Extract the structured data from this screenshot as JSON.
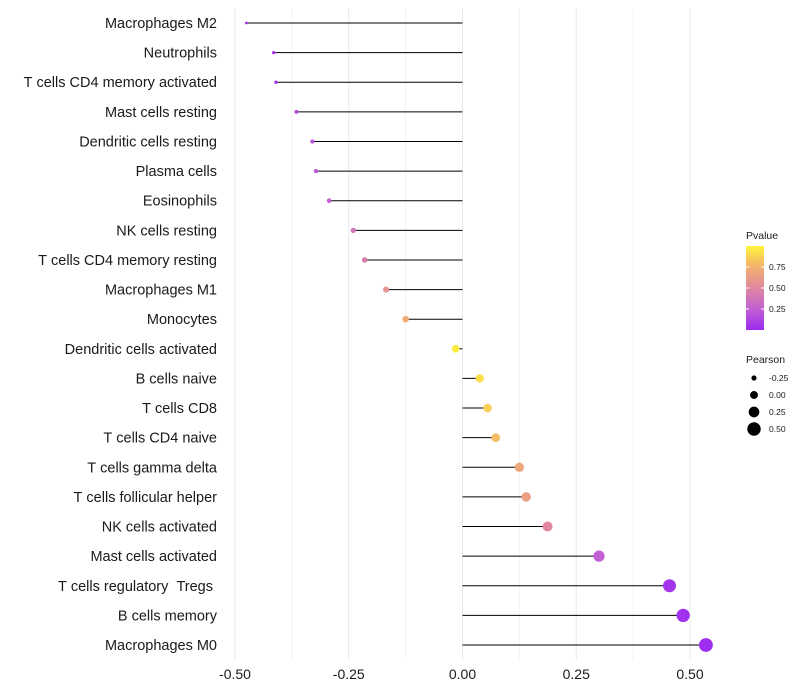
{
  "chart_data": {
    "type": "lollipop",
    "title": "",
    "xlabel": "",
    "ylabel": "",
    "xlim": [
      -0.5,
      0.55
    ],
    "x_ticks": [
      -0.5,
      -0.25,
      0.0,
      0.25,
      0.5
    ],
    "x_tick_labels": [
      "-0.50",
      "-0.25",
      "0.00",
      "0.25",
      "0.50"
    ],
    "grid": "vertical",
    "baseline": 0,
    "points": [
      {
        "category": "Macrophages M2",
        "pearson": -0.475,
        "pvalue": 0.01
      },
      {
        "category": "Neutrophils",
        "pearson": -0.415,
        "pvalue": 0.05
      },
      {
        "category": "T cells CD4 memory activated",
        "pearson": -0.41,
        "pvalue": 0.06
      },
      {
        "category": "Mast cells resting",
        "pearson": -0.365,
        "pvalue": 0.14
      },
      {
        "category": "Dendritic cells resting",
        "pearson": -0.33,
        "pvalue": 0.2
      },
      {
        "category": "Plasma cells",
        "pearson": -0.322,
        "pvalue": 0.22
      },
      {
        "category": "Eosinophils",
        "pearson": -0.293,
        "pvalue": 0.27
      },
      {
        "category": "NK cells resting",
        "pearson": -0.24,
        "pvalue": 0.38
      },
      {
        "category": "T cells CD4 memory resting",
        "pearson": -0.215,
        "pvalue": 0.44
      },
      {
        "category": "Macrophages M1",
        "pearson": -0.168,
        "pvalue": 0.58
      },
      {
        "category": "Monocytes",
        "pearson": -0.125,
        "pvalue": 0.72
      },
      {
        "category": "Dendritic cells activated",
        "pearson": -0.015,
        "pvalue": 0.97
      },
      {
        "category": "B cells naive",
        "pearson": 0.038,
        "pvalue": 0.92
      },
      {
        "category": "T cells CD8",
        "pearson": 0.055,
        "pvalue": 0.86
      },
      {
        "category": "T cells CD4 naive",
        "pearson": 0.073,
        "pvalue": 0.8
      },
      {
        "category": "T cells gamma delta",
        "pearson": 0.125,
        "pvalue": 0.68
      },
      {
        "category": "T cells follicular helper",
        "pearson": 0.14,
        "pvalue": 0.64
      },
      {
        "category": "NK cells activated",
        "pearson": 0.187,
        "pvalue": 0.5
      },
      {
        "category": "Mast cells activated",
        "pearson": 0.3,
        "pvalue": 0.25
      },
      {
        "category": "T cells regulatory  Tregs ",
        "pearson": 0.455,
        "pvalue": 0.05
      },
      {
        "category": "B cells memory",
        "pearson": 0.485,
        "pvalue": 0.03
      },
      {
        "category": "Macrophages M0",
        "pearson": 0.535,
        "pvalue": 0.01
      }
    ],
    "color_scale": {
      "variable": "Pvalue",
      "title": "Pvalue",
      "domain": [
        0.0,
        1.0
      ],
      "colors": [
        "#9b2cf0",
        "#c25fd3",
        "#e0879f",
        "#f3b06e",
        "#fff33a"
      ],
      "ticks": [
        0.25,
        0.5,
        0.75
      ],
      "tick_labels": [
        "0.25",
        "0.50",
        "0.75"
      ]
    },
    "size_scale": {
      "variable": "Pearson",
      "title": "Pearson",
      "domain": [
        -0.5,
        0.55
      ],
      "range_radius": [
        1.2,
        7.0
      ],
      "entries": [
        -0.25,
        0.0,
        0.25,
        0.5
      ],
      "entry_labels": [
        "-0.25",
        "0.00",
        "0.25",
        "0.50"
      ],
      "color": "#000000"
    }
  }
}
